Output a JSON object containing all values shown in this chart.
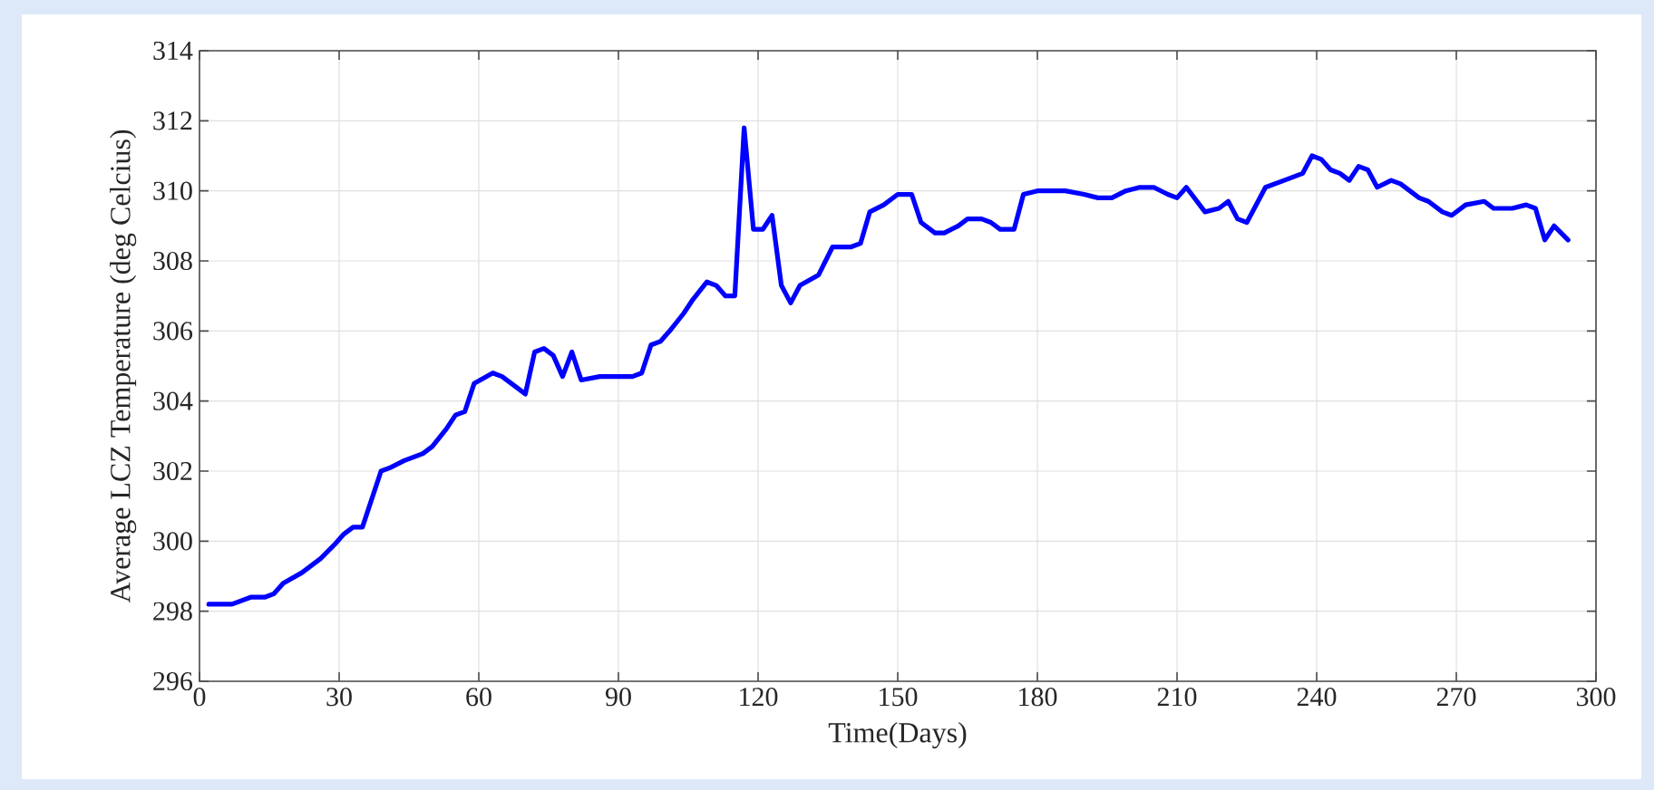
{
  "chart_data": {
    "type": "line",
    "xlabel": "Time(Days)",
    "ylabel": "Average LCZ Temperature (deg Celcius)",
    "xlim": [
      0,
      300
    ],
    "ylim": [
      296,
      314
    ],
    "xticks": [
      0,
      30,
      60,
      90,
      120,
      150,
      180,
      210,
      240,
      270,
      300
    ],
    "yticks": [
      296,
      298,
      300,
      302,
      304,
      306,
      308,
      310,
      312,
      314
    ],
    "grid": true,
    "line_style": "solid",
    "marker": "none",
    "series": [
      {
        "color": "#0000ff",
        "x": [
          2,
          7,
          11,
          14,
          16,
          18,
          22,
          26,
          29,
          31,
          33,
          35,
          39,
          41,
          44,
          48,
          50,
          53,
          55,
          57,
          59,
          63,
          65,
          68,
          70,
          72,
          74,
          76,
          78,
          80,
          82,
          86,
          88,
          90,
          93,
          95,
          97,
          99,
          101,
          104,
          106,
          109,
          111,
          113,
          115,
          117,
          119,
          121,
          123,
          125,
          127,
          129,
          133,
          136,
          138,
          140,
          142,
          144,
          147,
          150,
          153,
          155,
          158,
          160,
          163,
          165,
          168,
          170,
          172,
          175,
          177,
          180,
          182,
          186,
          190,
          193,
          196,
          199,
          202,
          205,
          208,
          210,
          212,
          216,
          219,
          221,
          223,
          225,
          229,
          233,
          237,
          239,
          241,
          243,
          245,
          247,
          249,
          251,
          253,
          256,
          258,
          260,
          262,
          264,
          267,
          269,
          272,
          276,
          278,
          282,
          285,
          287,
          289,
          291,
          294
        ],
        "values": [
          298.2,
          298.2,
          298.4,
          298.4,
          298.5,
          298.8,
          299.1,
          299.5,
          299.9,
          300.2,
          300.4,
          300.4,
          302.0,
          302.1,
          302.3,
          302.5,
          302.7,
          303.2,
          303.6,
          303.7,
          304.5,
          304.8,
          304.7,
          304.4,
          304.2,
          305.4,
          305.5,
          305.3,
          304.7,
          305.4,
          304.6,
          304.7,
          304.7,
          304.7,
          304.7,
          304.8,
          305.6,
          305.7,
          306.0,
          306.5,
          306.9,
          307.4,
          307.3,
          307.0,
          307.0,
          311.8,
          308.9,
          308.9,
          309.3,
          307.3,
          306.8,
          307.3,
          307.6,
          308.4,
          308.4,
          308.4,
          308.5,
          309.4,
          309.6,
          309.9,
          309.9,
          309.1,
          308.8,
          308.8,
          309.0,
          309.2,
          309.2,
          309.1,
          308.9,
          308.9,
          309.9,
          310.0,
          310.0,
          310.0,
          309.9,
          309.8,
          309.8,
          310.0,
          310.1,
          310.1,
          309.9,
          309.8,
          310.1,
          309.4,
          309.5,
          309.7,
          309.2,
          309.1,
          310.1,
          310.3,
          310.5,
          311.0,
          310.9,
          310.6,
          310.5,
          310.3,
          310.7,
          310.6,
          310.1,
          310.3,
          310.2,
          310.0,
          309.8,
          309.7,
          309.4,
          309.3,
          309.6,
          309.7,
          309.5,
          309.5,
          309.6,
          309.5,
          308.6,
          309.0,
          308.6
        ]
      }
    ]
  }
}
